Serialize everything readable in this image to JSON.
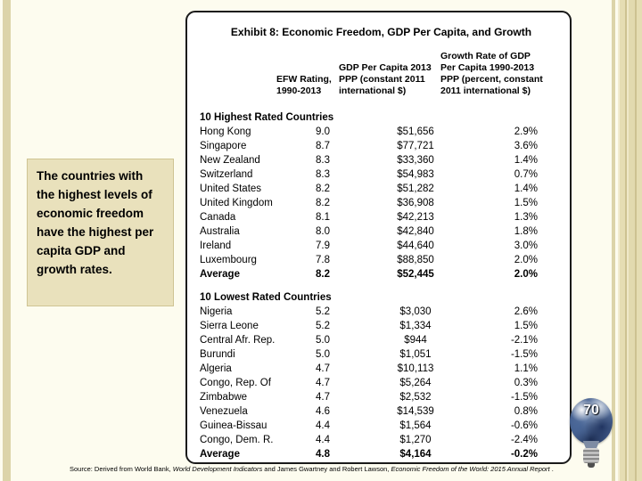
{
  "slide": {
    "number": "70",
    "background_color": "#FDFCEF",
    "accent_tan": "#DCD4A9",
    "callout_fill": "#E9E1BC"
  },
  "callout": {
    "text": "The countries with the highest levels of economic freedom have the highest per capita GDP and growth rates."
  },
  "exhibit": {
    "title": "Exhibit 8: Economic Freedom, GDP Per Capita, and Growth",
    "col_rating": "EFW Rating, 1990-2013",
    "col_gdp": "GDP Per Capita 2013 PPP (constant 2011 international $)",
    "col_growth": "Growth Rate of GDP Per Capita 1990-2013 PPP (percent, constant 2011 international $)",
    "sections": [
      {
        "heading": "10 Highest Rated Countries",
        "rows": [
          [
            "Hong Kong",
            "9.0",
            "$51,656",
            "2.9%"
          ],
          [
            "Singapore",
            "8.7",
            "$77,721",
            "3.6%"
          ],
          [
            "New Zealand",
            "8.3",
            "$33,360",
            "1.4%"
          ],
          [
            "Switzerland",
            "8.3",
            "$54,983",
            "0.7%"
          ],
          [
            "United States",
            "8.2",
            "$51,282",
            "1.4%"
          ],
          [
            "United Kingdom",
            "8.2",
            "$36,908",
            "1.5%"
          ],
          [
            "Canada",
            "8.1",
            "$42,213",
            "1.3%"
          ],
          [
            "Australia",
            "8.0",
            "$42,840",
            "1.8%"
          ],
          [
            "Ireland",
            "7.9",
            "$44,640",
            "3.0%"
          ],
          [
            "Luxembourg",
            "7.8",
            "$88,850",
            "2.0%"
          ]
        ],
        "average": [
          "Average",
          "8.2",
          "$52,445",
          "2.0%"
        ]
      },
      {
        "heading": "10 Lowest Rated Countries",
        "rows": [
          [
            "Nigeria",
            "5.2",
            "$3,030",
            "2.6%"
          ],
          [
            "Sierra Leone",
            "5.2",
            "$1,334",
            "1.5%"
          ],
          [
            "Central Afr. Rep.",
            "5.0",
            "$944",
            "-2.1%"
          ],
          [
            "Burundi",
            "5.0",
            "$1,051",
            "-1.5%"
          ],
          [
            "Algeria",
            "4.7",
            "$10,113",
            "1.1%"
          ],
          [
            "Congo, Rep. Of",
            "4.7",
            "$5,264",
            "0.3%"
          ],
          [
            "Zimbabwe",
            "4.7",
            "$2,532",
            "-1.5%"
          ],
          [
            "Venezuela",
            "4.6",
            "$14,539",
            "0.8%"
          ],
          [
            "Guinea-Bissau",
            "4.4",
            "$1,564",
            "-0.6%"
          ],
          [
            "Congo, Dem. R.",
            "4.4",
            "$1,270",
            "-2.4%"
          ]
        ],
        "average": [
          "Average",
          "4.8",
          "$4,164",
          "-0.2%"
        ]
      }
    ]
  },
  "source": {
    "parts": [
      {
        "text": "Source: Derived from World Bank, ",
        "italic": false
      },
      {
        "text": "World Development Indicators",
        "italic": true
      },
      {
        "text": " and James Gwartney and Robert Lawson, ",
        "italic": false
      },
      {
        "text": "Economic Freedom of the World: 2015 Annual Report",
        "italic": true
      },
      {
        "text": " .",
        "italic": false
      }
    ]
  }
}
